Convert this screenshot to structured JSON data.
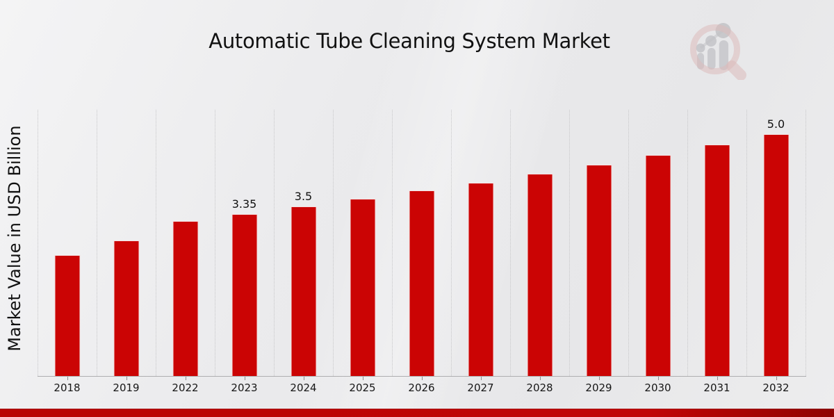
{
  "header": {
    "title": "Automatic Tube Cleaning System Market"
  },
  "icons": {
    "logo": "magnifier-bar-chart-logo-icon"
  },
  "colors": {
    "bar": "#CB0404",
    "accent_strip_start": "#B90404",
    "accent_strip_mid": "#C10505",
    "accent_strip_end": "#8F0303",
    "background": "#EAEAEC",
    "gridline": "#C7C7C9",
    "axis_line": "#AEAEB0",
    "text": "#141414",
    "logo_pink": "#DDBCBC",
    "logo_gray": "#C2C2C6"
  },
  "chart_data": {
    "type": "bar",
    "title": "Automatic Tube Cleaning System Market",
    "ylabel": "Market Value in USD Billion",
    "xlabel": "",
    "categories": [
      "2018",
      "2019",
      "2022",
      "2023",
      "2024",
      "2025",
      "2026",
      "2027",
      "2028",
      "2029",
      "2030",
      "2031",
      "2032"
    ],
    "values": [
      2.5,
      2.8,
      3.2,
      3.35,
      3.5,
      3.66,
      3.83,
      4.0,
      4.18,
      4.37,
      4.57,
      4.78,
      5.0
    ],
    "bar_labels": [
      "",
      "",
      "",
      "3.35",
      "3.5",
      "",
      "",
      "",
      "",
      "",
      "",
      "",
      "5.0"
    ],
    "ylim": [
      0,
      5.5
    ],
    "grid": "vertical-dotted",
    "legend": null,
    "bar_color": "#CB0404"
  }
}
